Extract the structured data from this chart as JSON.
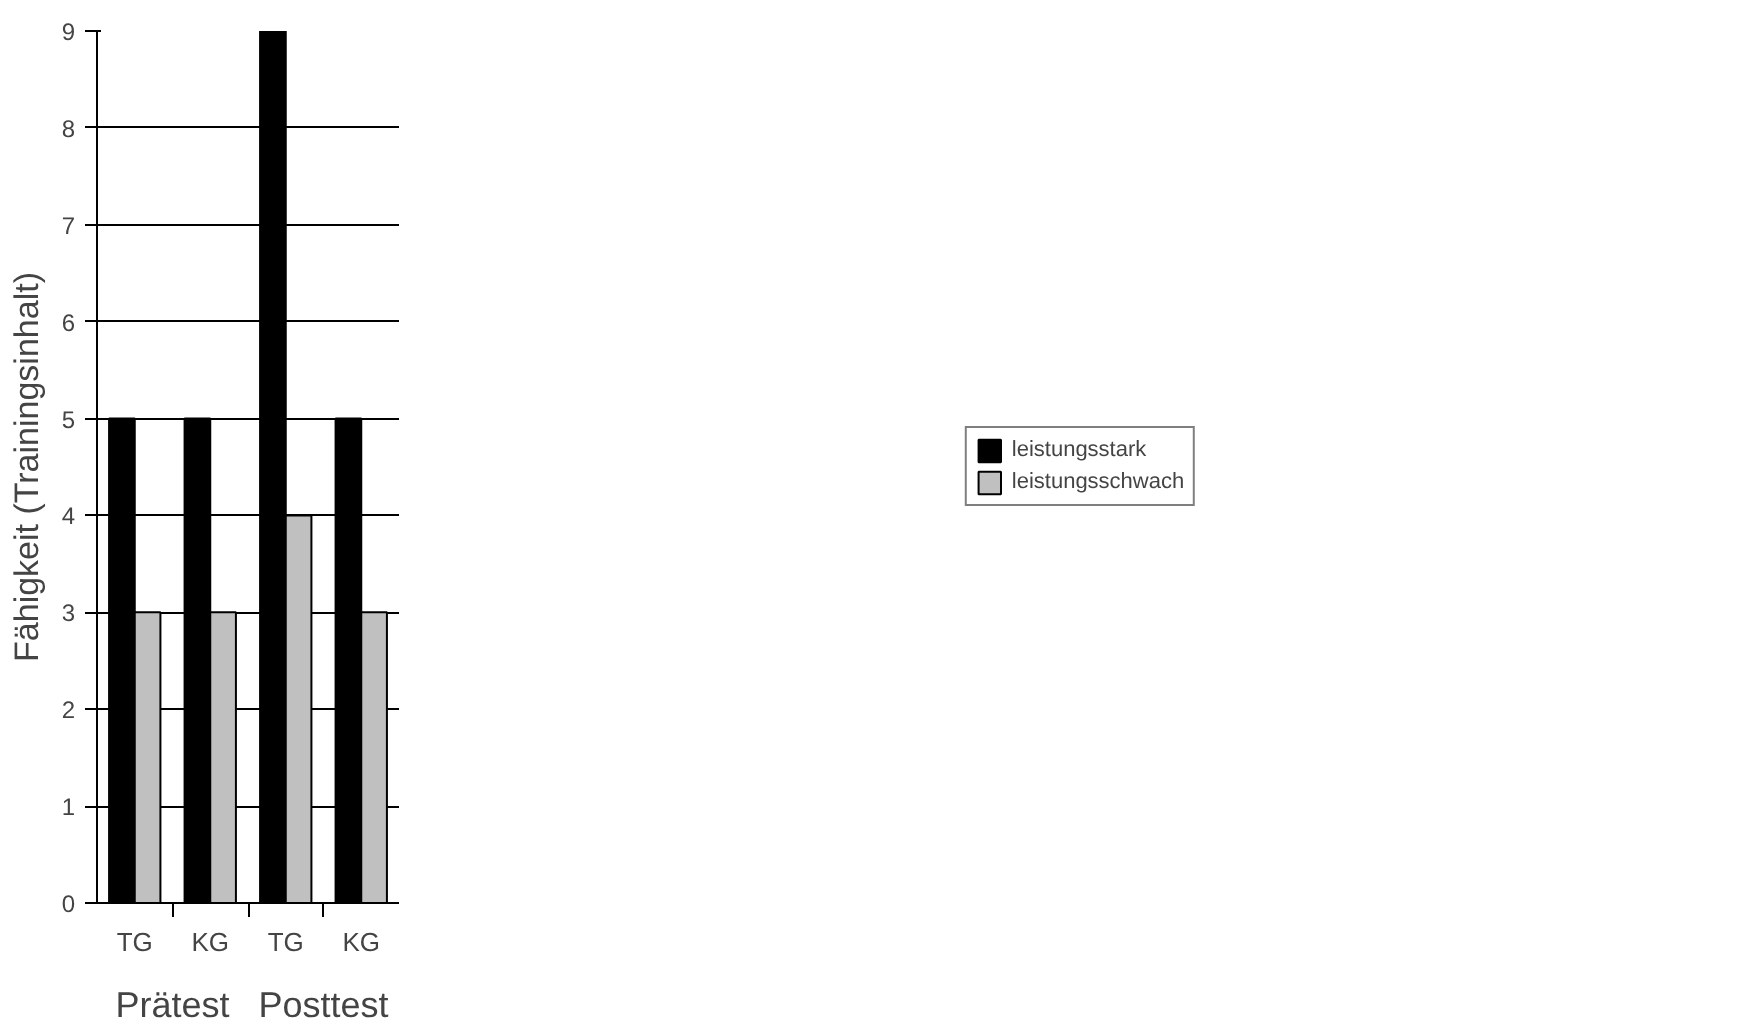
{
  "chart_data": {
    "type": "bar",
    "ylabel": "Fähigkeit (Trainingsinhalt)",
    "categories": [
      "TG",
      "KG",
      "TG",
      "KG"
    ],
    "annotations": [
      "Prätest",
      "Posttest"
    ],
    "series": [
      {
        "name": "leistungsstark",
        "color": "#000000",
        "values": [
          5,
          5,
          9,
          5
        ]
      },
      {
        "name": "leistungsschwach",
        "color": "#c0c0c0",
        "values": [
          3,
          3,
          4,
          3
        ]
      }
    ],
    "ylim": [
      0,
      9
    ],
    "yticks": [
      0,
      1,
      2,
      3,
      4,
      5,
      6,
      7,
      8,
      9
    ],
    "grid": "y",
    "legend": "right"
  }
}
